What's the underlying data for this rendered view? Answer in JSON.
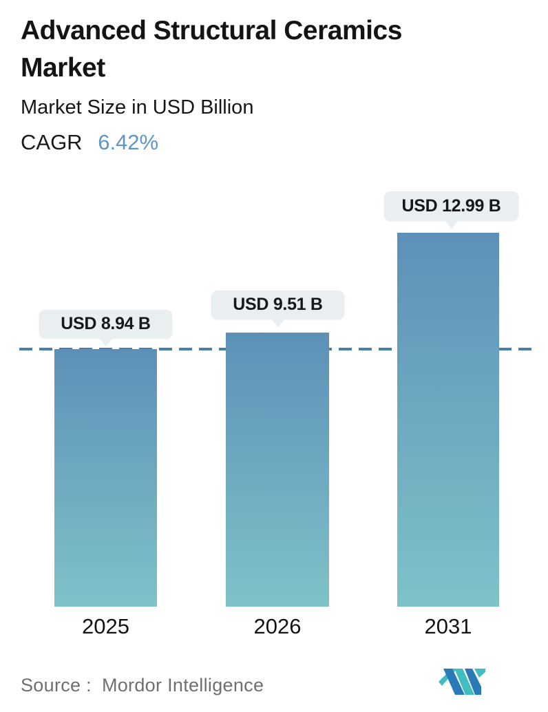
{
  "header": {
    "title": "Advanced Structural Ceramics Market",
    "subtitle": "Market Size in USD Billion",
    "cagr_label": "CAGR",
    "cagr_value": "6.42%"
  },
  "chart_data": {
    "type": "bar",
    "categories": [
      "2025",
      "2026",
      "2031"
    ],
    "values": [
      8.94,
      9.51,
      12.99
    ],
    "value_labels": [
      "USD 8.94 B",
      "USD 9.51 B",
      "USD 12.99 B"
    ],
    "title": "Advanced Structural Ceramics Market",
    "ylabel": "Market Size in USD Billion",
    "ylim": [
      0,
      12.99
    ],
    "grid": false,
    "legend": false,
    "reference_line": {
      "y": 8.94,
      "style": "dashed"
    },
    "colors": {
      "bar_gradient_top": "#5d90b8",
      "bar_gradient_bottom": "#7fc2c8",
      "reference_line": "#4d7ea8",
      "tooltip_bg": "#e9eef0",
      "cagr_accent": "#5e95c5",
      "logo_blue": "#2a7ab8",
      "logo_teal": "#3fbdc0"
    }
  },
  "footer": {
    "source_prefix": "Source :",
    "source_name": "Mordor Intelligence"
  }
}
